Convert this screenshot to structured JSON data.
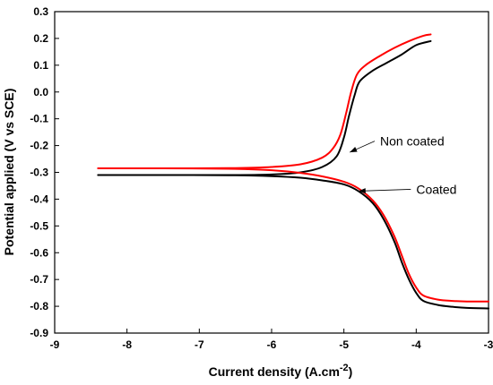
{
  "chart_data": {
    "type": "line",
    "title": "",
    "xlabel_main": "Current density (A.cm",
    "xlabel_exp": "-2",
    "xlabel_close": ")",
    "ylabel": "Potential applied (V vs SCE)",
    "xlim": [
      -9,
      -3
    ],
    "ylim": [
      -0.9,
      0.3
    ],
    "xticks": [
      -9,
      -8,
      -7,
      -6,
      -5,
      -4,
      -3
    ],
    "xtick_labels": [
      "-9",
      "-8",
      "-7",
      "-6",
      "-5",
      "-4",
      "-3"
    ],
    "yticks": [
      -0.9,
      -0.8,
      -0.7,
      -0.6,
      -0.5,
      -0.4,
      -0.3,
      -0.2,
      -0.1,
      0.0,
      0.1,
      0.2,
      0.3
    ],
    "ytick_labels": [
      "-0.9",
      "-0.8",
      "-0.7",
      "-0.6",
      "-0.5",
      "-0.4",
      "-0.3",
      "-0.2",
      "-0.1",
      "0.0",
      "0.1",
      "0.2",
      "0.3"
    ],
    "grid": false,
    "series": [
      {
        "color": "#ff0000",
        "branches": [
          {
            "x": [
              -8.4,
              -7.5,
              -6.5,
              -6.0,
              -5.6,
              -5.3,
              -5.15,
              -5.05,
              -4.97,
              -4.9,
              -4.82,
              -4.7,
              -4.5,
              -4.3,
              -4.1,
              -3.9,
              -3.8
            ],
            "y": [
              -0.285,
              -0.285,
              -0.284,
              -0.28,
              -0.27,
              -0.245,
              -0.21,
              -0.16,
              -0.08,
              0.0,
              0.065,
              0.1,
              0.135,
              0.165,
              0.19,
              0.21,
              0.215
            ]
          },
          {
            "x": [
              -8.4,
              -7.5,
              -6.5,
              -6.0,
              -5.6,
              -5.3,
              -5.0,
              -4.8,
              -4.6,
              -4.45,
              -4.3,
              -4.2,
              -4.1,
              -4.0,
              -3.9,
              -3.7,
              -3.5,
              -3.3,
              -3.0
            ],
            "y": [
              -0.285,
              -0.285,
              -0.287,
              -0.292,
              -0.302,
              -0.315,
              -0.335,
              -0.36,
              -0.405,
              -0.46,
              -0.54,
              -0.61,
              -0.68,
              -0.73,
              -0.76,
              -0.775,
              -0.78,
              -0.782,
              -0.782
            ]
          }
        ]
      },
      {
        "color": "#000000",
        "branches": [
          {
            "x": [
              -8.4,
              -7.5,
              -6.5,
              -6.0,
              -5.6,
              -5.3,
              -5.1,
              -5.0,
              -4.93,
              -4.85,
              -4.78,
              -4.6,
              -4.4,
              -4.2,
              -4.0,
              -3.8
            ],
            "y": [
              -0.31,
              -0.31,
              -0.31,
              -0.308,
              -0.3,
              -0.28,
              -0.24,
              -0.17,
              -0.09,
              -0.01,
              0.04,
              0.08,
              0.11,
              0.14,
              0.175,
              0.19
            ]
          },
          {
            "x": [
              -8.4,
              -7.5,
              -6.5,
              -6.0,
              -5.6,
              -5.3,
              -5.0,
              -4.8,
              -4.6,
              -4.45,
              -4.3,
              -4.2,
              -4.1,
              -4.0,
              -3.9,
              -3.7,
              -3.5,
              -3.3,
              -3.0
            ],
            "y": [
              -0.31,
              -0.31,
              -0.311,
              -0.314,
              -0.32,
              -0.33,
              -0.345,
              -0.37,
              -0.415,
              -0.475,
              -0.56,
              -0.635,
              -0.7,
              -0.75,
              -0.78,
              -0.795,
              -0.802,
              -0.806,
              -0.808
            ]
          }
        ]
      }
    ],
    "annotations": [
      {
        "text": "Non coated",
        "text_x": -4.5,
        "text_y": -0.2,
        "arrow_to_x": -4.92,
        "arrow_to_y": -0.225
      },
      {
        "text": "Coated",
        "text_x": -4.0,
        "text_y": -0.38,
        "arrow_to_x": -4.8,
        "arrow_to_y": -0.37
      }
    ]
  }
}
